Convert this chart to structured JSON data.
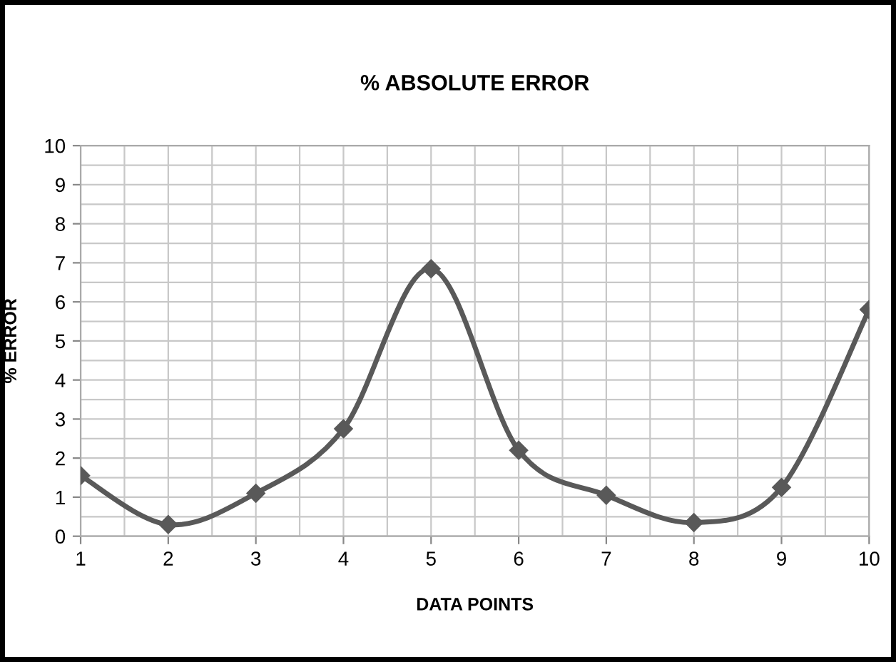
{
  "chart_data": {
    "type": "line",
    "title": "% ABSOLUTE ERROR",
    "xlabel": "DATA POINTS",
    "ylabel": "% ERROR",
    "x": [
      1,
      2,
      3,
      4,
      5,
      6,
      7,
      8,
      9,
      10
    ],
    "series": [
      {
        "color": "#595959",
        "values": [
          1.55,
          0.3,
          1.1,
          2.75,
          6.85,
          2.2,
          1.05,
          0.35,
          1.25,
          5.8
        ]
      }
    ],
    "xlim": [
      1,
      10
    ],
    "xticks": [
      1,
      2,
      3,
      4,
      5,
      6,
      7,
      8,
      9,
      10
    ],
    "ylim": [
      0,
      10
    ],
    "yticks": [
      0,
      1,
      2,
      3,
      4,
      5,
      6,
      7,
      8,
      9,
      10
    ],
    "grid": true,
    "marker": "diamond",
    "line_style": "solid",
    "legend": false
  }
}
